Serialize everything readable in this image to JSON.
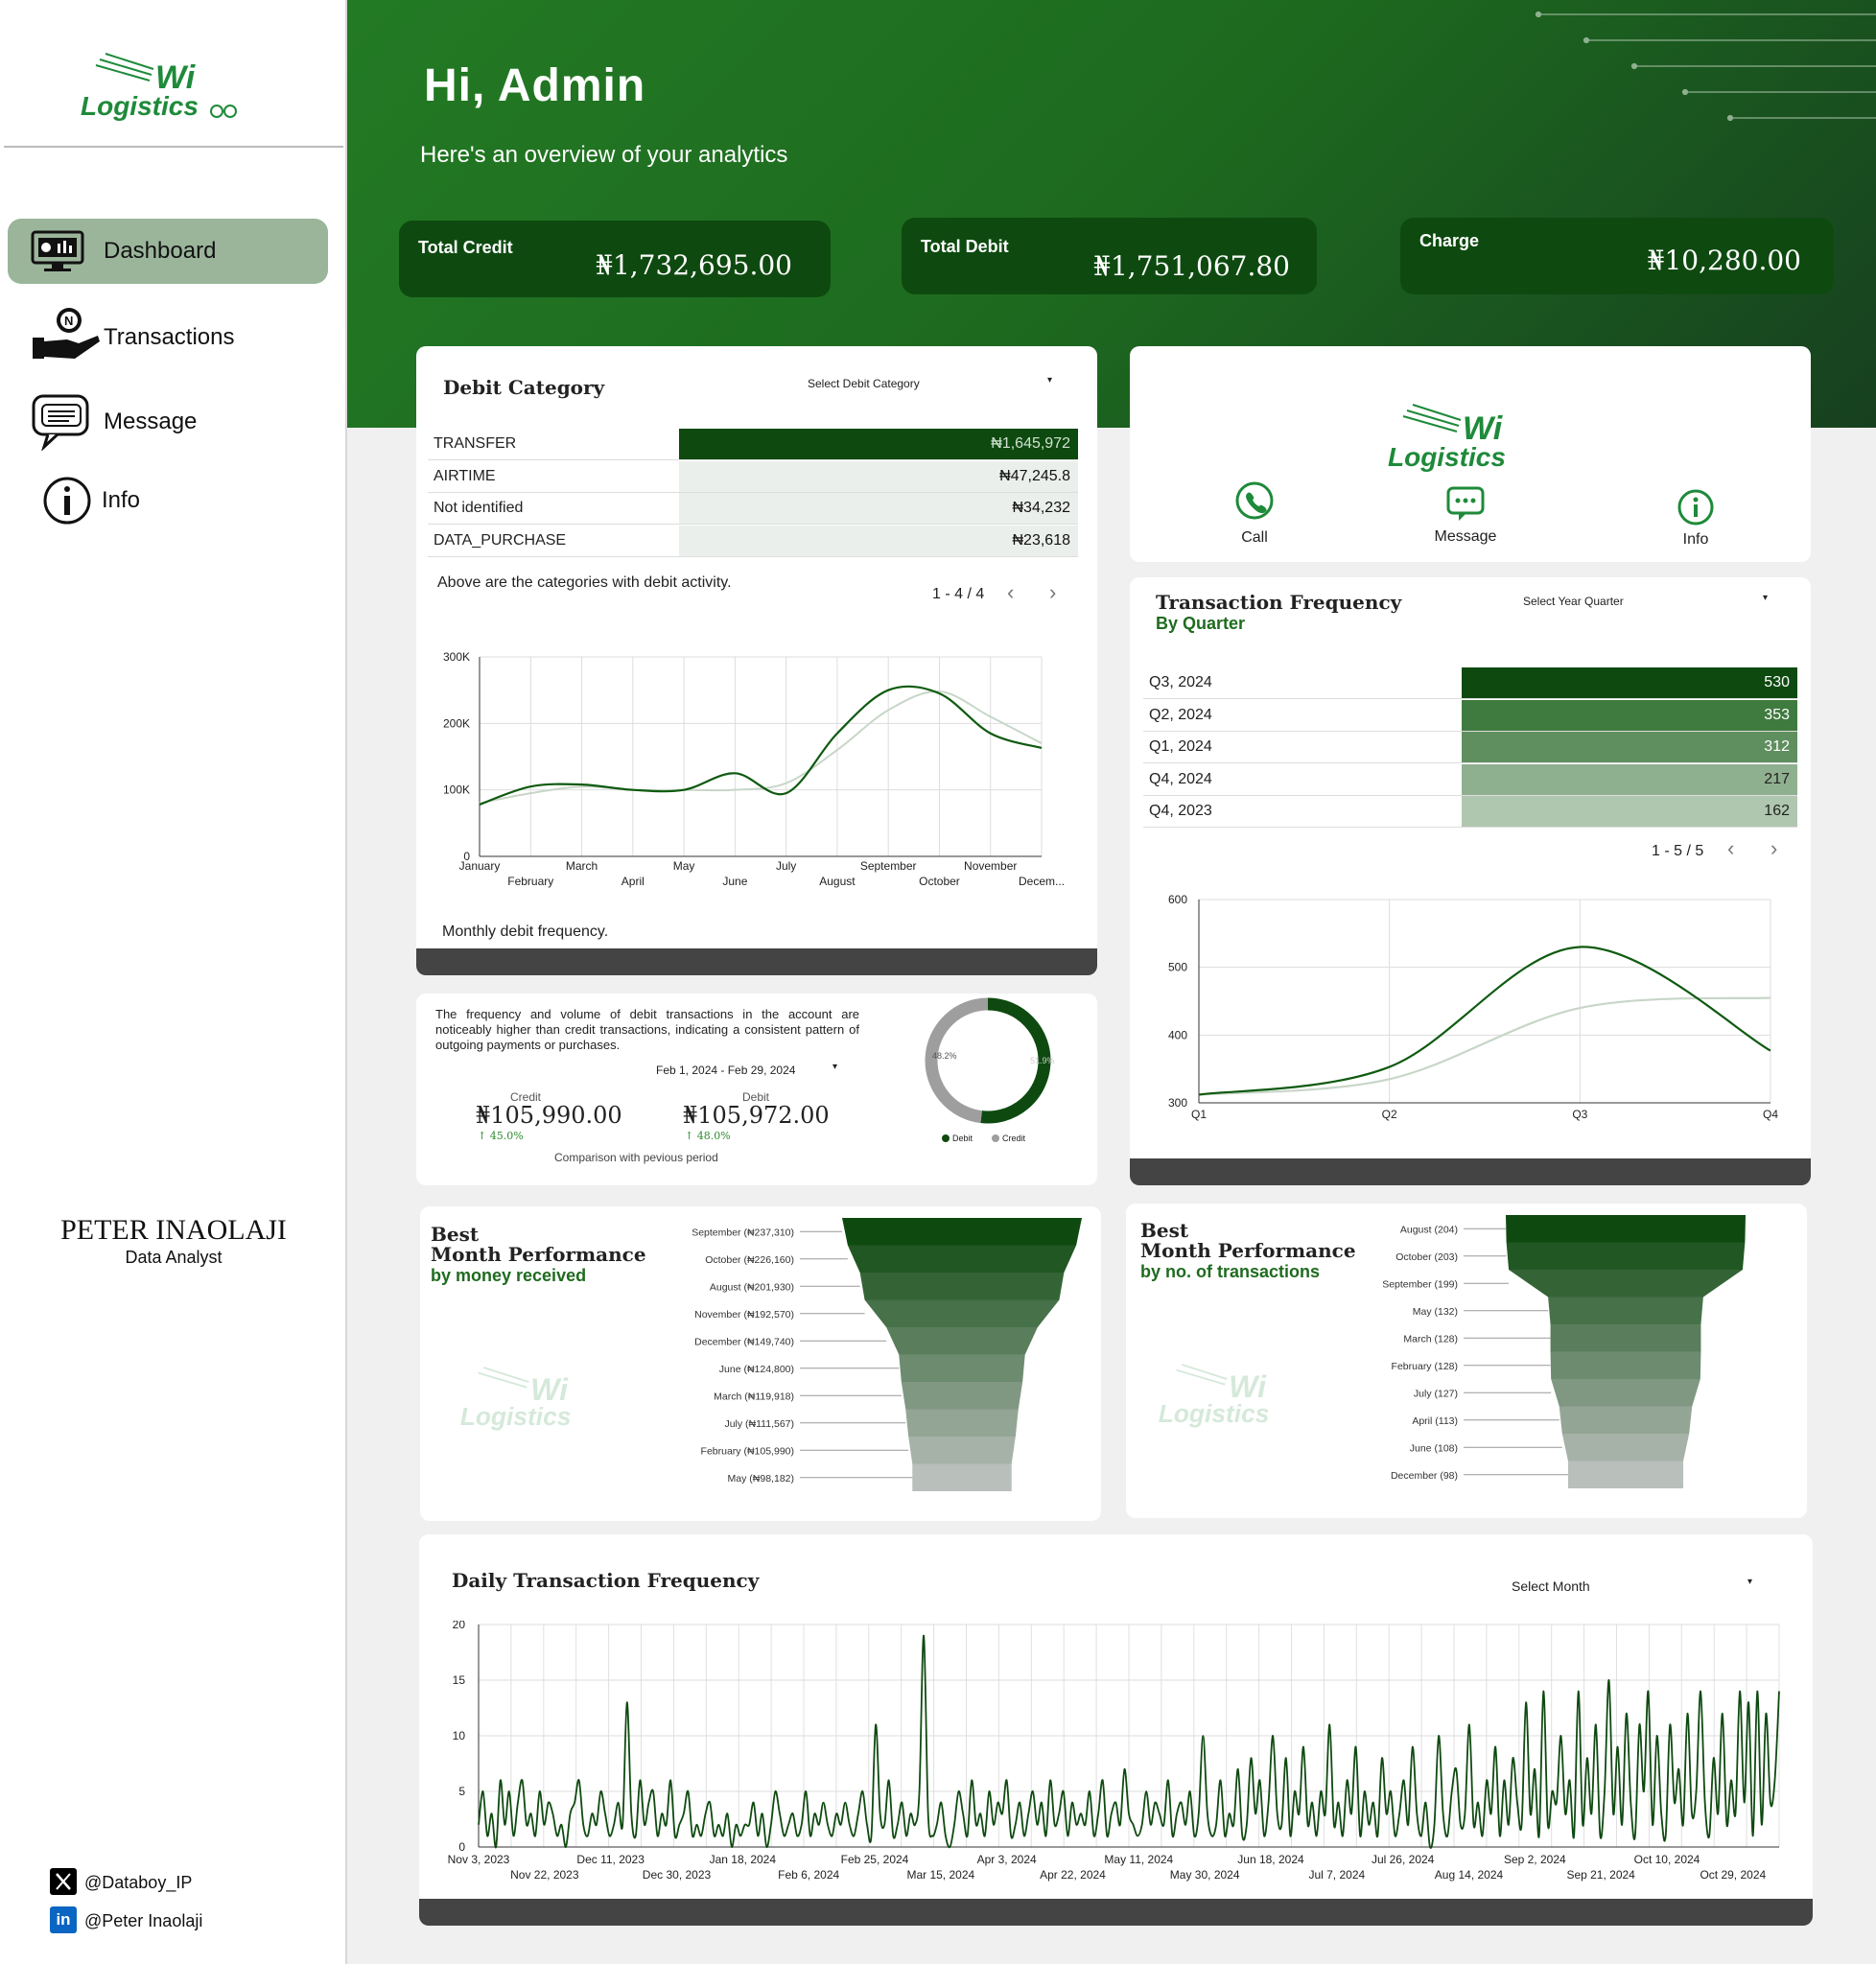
{
  "logo": {
    "top": "Wi",
    "bottom": "Logistics"
  },
  "nav": [
    {
      "label": "Dashboard"
    },
    {
      "label": "Transactions"
    },
    {
      "label": "Message"
    },
    {
      "label": "Info"
    }
  ],
  "author": {
    "name": "PETER INAOLAJI",
    "role": "Data Analyst"
  },
  "social": {
    "x": "@Databoy_IP",
    "linkedin": "@Peter Inaolaji"
  },
  "header": {
    "greeting": "Hi, Admin",
    "subtitle": "Here's an overview of your analytics"
  },
  "stats": [
    {
      "label": "Total Credit",
      "value": "₦1,732,695.00"
    },
    {
      "label": "Total Debit",
      "value": "₦1,751,067.80"
    },
    {
      "label": "Charge",
      "value": "₦10,280.00"
    }
  ],
  "debit_category": {
    "title": "Debit Category",
    "select": "Select Debit Category",
    "rows": [
      {
        "name": "TRANSFER",
        "value": "₦1,645,972",
        "share": 1.0
      },
      {
        "name": "AIRTIME",
        "value": "₦47,245.8",
        "share": 0.0287
      },
      {
        "name": "Not identified",
        "value": "₦34,232",
        "share": 0.0208
      },
      {
        "name": "DATA_PURCHASE",
        "value": "₦23,618",
        "share": 0.0143
      }
    ],
    "note": "Above are the categories with debit activity.",
    "pagination": "1 - 4 / 4",
    "chart_caption": "Monthly debit frequency."
  },
  "quick_actions": {
    "call": "Call",
    "message": "Message",
    "info": "Info"
  },
  "tx_frequency": {
    "title": "Transaction Frequency",
    "subtitle": "By Quarter",
    "select": "Select Year Quarter",
    "rows": [
      {
        "name": "Q3, 2024",
        "value": "530",
        "share": 1.0
      },
      {
        "name": "Q2, 2024",
        "value": "353",
        "share": 1.0
      },
      {
        "name": "Q1, 2024",
        "value": "312",
        "share": 1.0
      },
      {
        "name": "Q4, 2024",
        "value": "217",
        "share": 1.0
      },
      {
        "name": "Q4, 2023",
        "value": "162",
        "share": 1.0
      }
    ],
    "pagination": "1 - 5 / 5"
  },
  "summary": {
    "text": "The frequency and volume of debit transactions in the account are noticeably higher than credit transactions, indicating a consistent pattern of outgoing payments or purchases.",
    "date_range": "Feb 1, 2024 - Feb 29, 2024",
    "credit_label": "Credit",
    "credit_value": "₦105,990.00",
    "credit_change": "↑ 45.0%",
    "debit_label": "Debit",
    "debit_value": "₦105,972.00",
    "debit_change": "↑ 48.0%",
    "comparison": "Comparison with pevious period"
  },
  "best_money": {
    "line1": "Best",
    "line2": "Month Performance",
    "line3": "by money received"
  },
  "best_tx": {
    "line1": "Best",
    "line2": "Month Performance",
    "line3": "by no. of transactions"
  },
  "daily": {
    "title": "Daily Transaction Frequency",
    "select": "Select Month"
  },
  "colors": {
    "dark_green": "#0e4a10",
    "accent": "#1f6b1f",
    "brand": "#1e8a3a"
  },
  "chart_data": [
    {
      "type": "line",
      "title": "",
      "caption": "Monthly debit frequency.",
      "categories": [
        "January",
        "February",
        "March",
        "April",
        "May",
        "June",
        "July",
        "August",
        "September",
        "October",
        "November",
        "December"
      ],
      "tick_labels": [
        "January",
        "February",
        "March",
        "April",
        "May",
        "June",
        "July",
        "August",
        "September",
        "October",
        "November",
        "Decem..."
      ],
      "series": [
        {
          "values": [
            78,
            105,
            108,
            100,
            100,
            125,
            95,
            185,
            250,
            245,
            185,
            163
          ]
        },
        {
          "values": [
            80,
            95,
            105,
            100,
            100,
            100,
            110,
            160,
            220,
            248,
            210,
            170
          ]
        }
      ],
      "y_ticks": [
        "0",
        "100K",
        "200K",
        "300K"
      ],
      "ylim": [
        0,
        300000
      ],
      "y_scale": 1000,
      "grid": true
    },
    {
      "type": "line",
      "title": "Transaction Frequency",
      "categories": [
        "Q1",
        "Q2",
        "Q3",
        "Q4"
      ],
      "series": [
        {
          "values": [
            312,
            353,
            530,
            377
          ]
        },
        {
          "values": [
            312,
            335,
            440,
            455
          ]
        }
      ],
      "y_ticks": [
        "300",
        "400",
        "500",
        "600"
      ],
      "ylim": [
        300,
        600
      ],
      "grid": true
    },
    {
      "type": "pie",
      "title": "",
      "slices": [
        {
          "name": "Debit",
          "value": 51.9
        },
        {
          "name": "Credit",
          "value": 48.2
        }
      ],
      "labels": [
        "48.2%",
        "51.9%"
      ]
    },
    {
      "type": "bar",
      "title": "Month Performance by money received",
      "categories": [
        "September",
        "October",
        "August",
        "November",
        "December",
        "June",
        "March",
        "July",
        "February",
        "May"
      ],
      "labels": [
        "September (₦237,310)",
        "October (₦226,160)",
        "August (₦201,930)",
        "November (₦192,570)",
        "December (₦149,740)",
        "June (₦124,800)",
        "March (₦119,918)",
        "July (₦111,567)",
        "February (₦105,990)",
        "May (₦98,182)"
      ],
      "values": [
        237310,
        226160,
        201930,
        192570,
        149740,
        124800,
        119918,
        111567,
        105990,
        98182
      ]
    },
    {
      "type": "bar",
      "title": "Month Performance by no. of transactions",
      "categories": [
        "August",
        "October",
        "September",
        "May",
        "March",
        "February",
        "July",
        "April",
        "June",
        "December"
      ],
      "labels": [
        "August (204)",
        "October (203)",
        "September (199)",
        "May (132)",
        "March (128)",
        "February (128)",
        "July (127)",
        "April (113)",
        "June (108)",
        "December (98)"
      ],
      "values": [
        204,
        203,
        199,
        132,
        128,
        128,
        127,
        113,
        108,
        98
      ]
    },
    {
      "type": "line",
      "title": "Daily Transaction Frequency",
      "x_ticks_top": [
        "Nov 3, 2023",
        "Dec 11, 2023",
        "Jan 18, 2024",
        "Feb 25, 2024",
        "Apr 3, 2024",
        "May 11, 2024",
        "Jun 18, 2024",
        "Jul 26, 2024",
        "Sep 2, 2024",
        "Oct 10, 2024"
      ],
      "x_ticks_bottom": [
        "Nov 22, 2023",
        "Dec 30, 2023",
        "Feb 6, 2024",
        "Mar 15, 2024",
        "Apr 22, 2024",
        "May 30, 2024",
        "Jul 7, 2024",
        "Aug 14, 2024",
        "Sep 21, 2024",
        "Oct 29, 2024"
      ],
      "y_ticks": [
        "0",
        "5",
        "10",
        "15",
        "20"
      ],
      "ylim": [
        0,
        20
      ],
      "grid": true,
      "values": [
        2,
        5,
        1,
        3,
        0,
        6,
        2,
        5,
        1,
        4,
        6,
        2,
        3,
        1,
        5,
        2,
        4,
        3,
        1,
        2,
        0,
        3,
        4,
        6,
        2,
        1,
        3,
        2,
        5,
        3,
        1,
        2,
        4,
        2,
        13,
        3,
        1,
        6,
        2,
        4,
        5,
        1,
        3,
        2,
        6,
        1,
        2,
        3,
        5,
        1,
        2,
        1,
        3,
        4,
        1,
        2,
        1,
        3,
        0,
        2,
        1,
        2,
        2,
        4,
        1,
        3,
        0,
        2,
        5,
        3,
        1,
        2,
        3,
        1,
        2,
        5,
        1,
        3,
        2,
        4,
        2,
        1,
        3,
        2,
        4,
        2,
        1,
        3,
        5,
        2,
        1,
        11,
        3,
        2,
        6,
        1,
        2,
        4,
        1,
        3,
        2,
        5,
        19,
        3,
        1,
        2,
        4,
        1,
        0,
        2,
        5,
        3,
        1,
        6,
        2,
        3,
        1,
        5,
        2,
        4,
        3,
        6,
        1,
        2,
        4,
        1,
        3,
        5,
        2,
        4,
        1,
        6,
        2,
        3,
        5,
        1,
        4,
        2,
        3,
        2,
        5,
        1,
        3,
        6,
        1,
        3,
        4,
        2,
        7,
        3,
        2,
        1,
        2,
        5,
        2,
        4,
        3,
        2,
        6,
        1,
        3,
        4,
        2,
        5,
        1,
        3,
        10,
        3,
        1,
        2,
        6,
        1,
        3,
        2,
        7,
        1,
        2,
        8,
        3,
        6,
        1,
        4,
        10,
        3,
        2,
        8,
        1,
        5,
        3,
        9,
        2,
        4,
        1,
        5,
        3,
        11,
        2,
        4,
        1,
        6,
        3,
        9,
        1,
        5,
        2,
        4,
        1,
        8,
        3,
        5,
        1,
        3,
        6,
        2,
        9,
        3,
        1,
        4,
        0,
        2,
        10,
        3,
        1,
        5,
        7,
        2,
        3,
        11,
        2,
        4,
        1,
        6,
        3,
        9,
        1,
        6,
        2,
        8,
        4,
        2,
        13,
        3,
        7,
        1,
        14,
        2,
        5,
        4,
        10,
        3,
        6,
        1,
        14,
        2,
        8,
        3,
        11,
        1,
        5,
        15,
        3,
        9,
        2,
        12,
        4,
        1,
        11,
        5,
        14,
        2,
        10,
        3,
        1,
        11,
        4,
        7,
        2,
        12,
        3,
        5,
        14,
        4,
        1,
        8,
        3,
        12,
        2,
        6,
        3,
        14,
        4,
        13,
        1,
        14,
        2,
        12,
        4,
        6,
        14
      ]
    }
  ]
}
